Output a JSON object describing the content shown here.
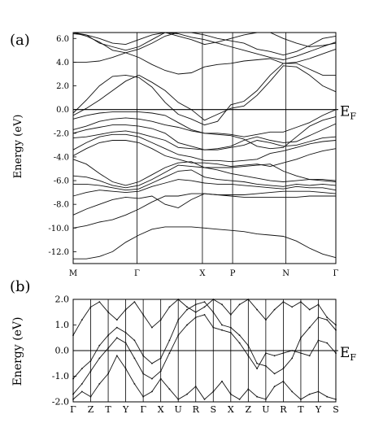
{
  "chart_data": [
    {
      "type": "line",
      "panel_label": "(a)",
      "ylabel": "Energy (eV)",
      "fermi_label": "E",
      "fermi_sub": "F",
      "ylim": [
        -13.0,
        6.5
      ],
      "yticks": [
        6.0,
        4.0,
        2.0,
        0.0,
        -2.0,
        -4.0,
        -6.0,
        -8.0,
        -10.0,
        -12.0
      ],
      "ytick_labels": [
        "6.0",
        "4.0",
        "2.0",
        "0.0",
        "-2.0",
        "-4.0",
        "-6.0",
        "-8.0",
        "-10.0",
        "-12.0"
      ],
      "kpath_labels": [
        "M",
        "Γ",
        "X",
        "P",
        "N",
        "Γ"
      ],
      "fermi_level": 0.0,
      "x": [
        0,
        0.5,
        1,
        1.5,
        2,
        2.5,
        3,
        3.5,
        4,
        4.5,
        5,
        5.5,
        6,
        6.5,
        7,
        7.5,
        8,
        8.5,
        9,
        9.5,
        10
      ],
      "series": [
        {
          "values": [
            -12.6,
            -12.6,
            -12.4,
            -12.0,
            -11.2,
            -10.6,
            -10.1,
            -9.9,
            -9.9,
            -9.9,
            -10.0,
            -10.1,
            -10.2,
            -10.3,
            -10.5,
            -10.6,
            -10.7,
            -11.1,
            -11.7,
            -12.2,
            -12.5
          ]
        },
        {
          "values": [
            -10.0,
            -9.8,
            -9.5,
            -9.3,
            -8.9,
            -8.4,
            -7.8,
            -7.3,
            -7.3,
            -7.1,
            -7.1,
            -7.2,
            -7.3,
            -7.4,
            -7.4,
            -7.4,
            -7.4,
            -7.4,
            -7.3,
            -7.3,
            -7.3
          ]
        },
        {
          "values": [
            -8.9,
            -8.4,
            -8.0,
            -7.6,
            -7.4,
            -7.5,
            -7.3,
            -8.0,
            -8.3,
            -7.6,
            -7.1,
            -7.2,
            -7.2,
            -7.2,
            -7.1,
            -7.0,
            -6.9,
            -6.9,
            -6.9,
            -7.0,
            -7.1
          ]
        },
        {
          "values": [
            -7.3,
            -7.0,
            -6.8,
            -6.9,
            -7.0,
            -6.9,
            -6.5,
            -6.2,
            -5.9,
            -6.0,
            -6.2,
            -6.3,
            -6.3,
            -6.4,
            -6.5,
            -6.6,
            -6.7,
            -6.5,
            -6.6,
            -6.6,
            -6.8
          ]
        },
        {
          "values": [
            -6.3,
            -6.3,
            -6.4,
            -6.6,
            -6.8,
            -6.7,
            -6.2,
            -5.7,
            -5.2,
            -5.1,
            -5.7,
            -5.9,
            -6.0,
            -6.1,
            -6.3,
            -6.4,
            -6.5,
            -6.3,
            -6.4,
            -6.3,
            -6.4
          ]
        },
        {
          "values": [
            -5.6,
            -5.7,
            -6.0,
            -6.4,
            -6.6,
            -6.4,
            -5.9,
            -5.3,
            -4.7,
            -4.8,
            -4.9,
            -5.1,
            -5.4,
            -5.6,
            -5.8,
            -6.0,
            -6.1,
            -6.0,
            -5.9,
            -6.0,
            -6.1
          ]
        },
        {
          "values": [
            -4.2,
            -4.6,
            -5.4,
            -6.1,
            -6.4,
            -6.1,
            -5.5,
            -4.9,
            -4.5,
            -4.4,
            -4.9,
            -4.9,
            -4.9,
            -4.8,
            -4.7,
            -4.6,
            -5.2,
            -5.6,
            -5.9,
            -5.9,
            -6.0
          ]
        },
        {
          "values": [
            -3.9,
            -3.3,
            -2.8,
            -2.6,
            -2.6,
            -2.8,
            -3.3,
            -3.9,
            -4.2,
            -4.5,
            -4.5,
            -4.6,
            -4.8,
            -4.7,
            -4.6,
            -4.8,
            -4.5,
            -4.2,
            -3.8,
            -3.5,
            -3.3
          ]
        },
        {
          "values": [
            -3.4,
            -2.8,
            -2.3,
            -2.1,
            -2.1,
            -2.3,
            -2.8,
            -3.3,
            -3.8,
            -4.0,
            -4.3,
            -4.3,
            -4.4,
            -4.3,
            -4.2,
            -3.7,
            -3.5,
            -3.2,
            -2.9,
            -2.7,
            -2.6
          ]
        },
        {
          "values": [
            -2.4,
            -2.3,
            -2.1,
            -1.9,
            -1.8,
            -2.0,
            -2.3,
            -2.6,
            -3.2,
            -3.3,
            -3.4,
            -3.4,
            -3.2,
            -3.0,
            -2.6,
            -2.8,
            -3.1,
            -3.0,
            -2.7,
            -2.4,
            -2.3
          ]
        },
        {
          "values": [
            -2.0,
            -1.7,
            -1.5,
            -1.3,
            -1.3,
            -1.4,
            -1.6,
            -2.0,
            -2.8,
            -3.1,
            -3.4,
            -3.3,
            -3.1,
            -2.6,
            -2.3,
            -2.6,
            -2.8,
            -2.7,
            -2.2,
            -1.7,
            -1.2
          ]
        },
        {
          "values": [
            -1.7,
            -1.4,
            -1.0,
            -0.8,
            -0.7,
            -0.8,
            -1.0,
            -1.3,
            -1.5,
            -1.8,
            -2.0,
            -2.0,
            -2.1,
            -2.3,
            -2.1,
            -1.9,
            -1.9,
            -1.5,
            -1.1,
            -0.5,
            0.0
          ]
        },
        {
          "values": [
            -0.8,
            -0.5,
            -0.3,
            -0.2,
            -0.2,
            -0.2,
            -0.3,
            -0.5,
            -1.1,
            -1.7,
            -2.0,
            -2.1,
            -2.2,
            -2.5,
            -3.1,
            -3.3,
            -3.2,
            -2.3,
            -1.4,
            -0.9,
            -0.6
          ]
        },
        {
          "values": [
            -0.5,
            0.1,
            0.8,
            1.6,
            2.4,
            2.9,
            2.3,
            1.6,
            0.6,
            0.0,
            -0.9,
            -0.4,
            0.1,
            0.3,
            1.2,
            2.4,
            3.7,
            3.6,
            2.9,
            2.0,
            1.5
          ]
        },
        {
          "values": [
            -0.3,
            0.8,
            2.0,
            2.8,
            2.9,
            2.7,
            1.9,
            0.6,
            -0.4,
            -0.8,
            -1.3,
            -1.0,
            0.4,
            0.7,
            1.6,
            2.9,
            3.9,
            3.9,
            3.4,
            2.9,
            2.9
          ]
        },
        {
          "values": [
            4.0,
            4.0,
            4.1,
            4.4,
            4.8,
            4.4,
            3.8,
            3.3,
            3.0,
            3.1,
            3.6,
            3.8,
            3.9,
            4.1,
            4.2,
            4.3,
            3.9,
            4.0,
            4.3,
            4.7,
            5.1
          ]
        },
        {
          "values": [
            6.4,
            6.3,
            6.0,
            5.6,
            5.5,
            5.9,
            6.3,
            6.5,
            6.2,
            5.9,
            5.5,
            5.7,
            6.0,
            6.3,
            6.5,
            6.5,
            6.0,
            5.6,
            5.3,
            5.4,
            5.6
          ]
        },
        {
          "values": [
            6.5,
            6.3,
            5.6,
            5.3,
            5.0,
            5.3,
            5.9,
            6.5,
            6.4,
            6.1,
            5.9,
            5.6,
            5.3,
            5.0,
            4.7,
            4.4,
            4.2,
            4.5,
            4.9,
            5.3,
            5.7
          ]
        },
        {
          "values": [
            6.5,
            6.2,
            5.7,
            5.0,
            4.8,
            5.1,
            5.6,
            6.2,
            6.5,
            6.5,
            6.3,
            6.0,
            5.8,
            5.6,
            5.1,
            4.9,
            4.6,
            4.9,
            5.4,
            6.0,
            6.2
          ]
        }
      ]
    },
    {
      "type": "line",
      "panel_label": "(b)",
      "ylabel": "Energy (eV)",
      "fermi_label": "E",
      "fermi_sub": "F",
      "ylim": [
        -2.0,
        2.0
      ],
      "yticks": [
        2.0,
        1.0,
        0.0,
        -1.0,
        -2.0
      ],
      "ytick_labels": [
        "2.0",
        "1.0",
        "0.0",
        "-1.0",
        "-2.0"
      ],
      "kpath_labels": [
        "Γ",
        "Z",
        "T",
        "Y",
        "Γ",
        "X",
        "U",
        "R",
        "S",
        "X",
        "Z",
        "U",
        "R",
        "T",
        "Y",
        "S"
      ],
      "fermi_level": 0.0,
      "x": [
        0,
        0.5,
        1,
        1.5,
        2,
        2.5,
        3,
        3.5,
        4,
        4.5,
        5,
        5.5,
        6,
        6.5,
        7,
        7.5,
        8,
        8.5,
        9,
        9.5,
        10,
        10.5,
        11,
        11.5,
        12,
        12.5,
        13,
        13.5,
        14,
        14.5,
        15
      ],
      "series": [
        {
          "values": [
            -1.1,
            -0.7,
            -0.4,
            0.2,
            0.6,
            0.9,
            0.7,
            0.4,
            -0.2,
            -0.5,
            -0.3,
            0.4,
            1.2,
            1.6,
            1.8,
            1.9,
            1.5,
            1.0,
            0.9,
            0.6,
            0.2,
            -0.5,
            -0.6,
            -0.9,
            -0.7,
            -0.3,
            0.5,
            0.9,
            1.3,
            1.2,
            0.8
          ]
        },
        {
          "values": [
            -1.7,
            -1.3,
            -0.8,
            -0.3,
            0.1,
            0.5,
            0.3,
            -0.3,
            -0.9,
            -1.1,
            -0.8,
            -0.1,
            0.6,
            1.0,
            1.3,
            1.4,
            0.9,
            0.8,
            0.7,
            0.3,
            -0.2,
            -0.7,
            -0.1,
            -0.2,
            -0.1,
            0.0,
            -0.1,
            -0.2,
            0.4,
            0.3,
            -0.1
          ]
        },
        {
          "values": [
            0.6,
            1.2,
            1.7,
            1.9,
            1.5,
            1.2,
            1.6,
            1.9,
            1.4,
            0.9,
            1.2,
            1.7,
            2.0,
            1.7,
            1.5,
            1.7,
            2.0,
            1.8,
            1.4,
            1.8,
            2.0,
            1.6,
            1.2,
            1.6,
            1.9,
            1.7,
            1.9,
            1.6,
            1.8,
            1.3,
            1.0
          ]
        },
        {
          "values": [
            -1.9,
            -1.6,
            -1.8,
            -1.3,
            -0.9,
            -0.2,
            -0.7,
            -1.3,
            -1.8,
            -1.6,
            -1.1,
            -1.5,
            -1.9,
            -1.7,
            -1.4,
            -1.9,
            -1.6,
            -1.2,
            -1.7,
            -1.9,
            -1.5,
            -1.8,
            -1.9,
            -1.4,
            -1.2,
            -1.6,
            -1.9,
            -1.7,
            -1.6,
            -1.8,
            -1.9
          ]
        }
      ]
    }
  ]
}
